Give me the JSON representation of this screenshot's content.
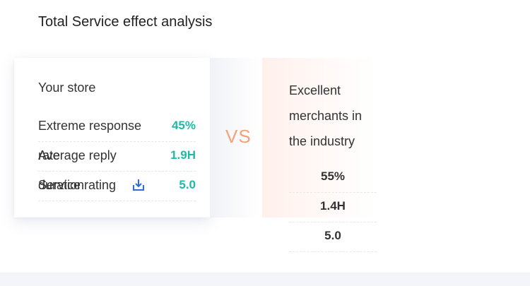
{
  "header": {
    "title": "Total Service effect analysis"
  },
  "your_store": {
    "title": "Your store",
    "metrics": [
      {
        "label": "Extreme response",
        "value": "45%"
      },
      {
        "label": "Average reply",
        "label_overlap": "rate",
        "value": "1.9H"
      },
      {
        "label": "Service rating",
        "label_overlap": "duration",
        "value": "5.0"
      }
    ],
    "download_icon": "download-icon"
  },
  "vs_label": "VS",
  "industry": {
    "title": "Excellent merchants in the industry",
    "values": [
      "55%",
      "1.4H",
      "5.0"
    ]
  },
  "colors": {
    "accent_teal": "#21b8a6",
    "vs_orange": "#f2a476",
    "icon_blue": "#2d6be4"
  }
}
